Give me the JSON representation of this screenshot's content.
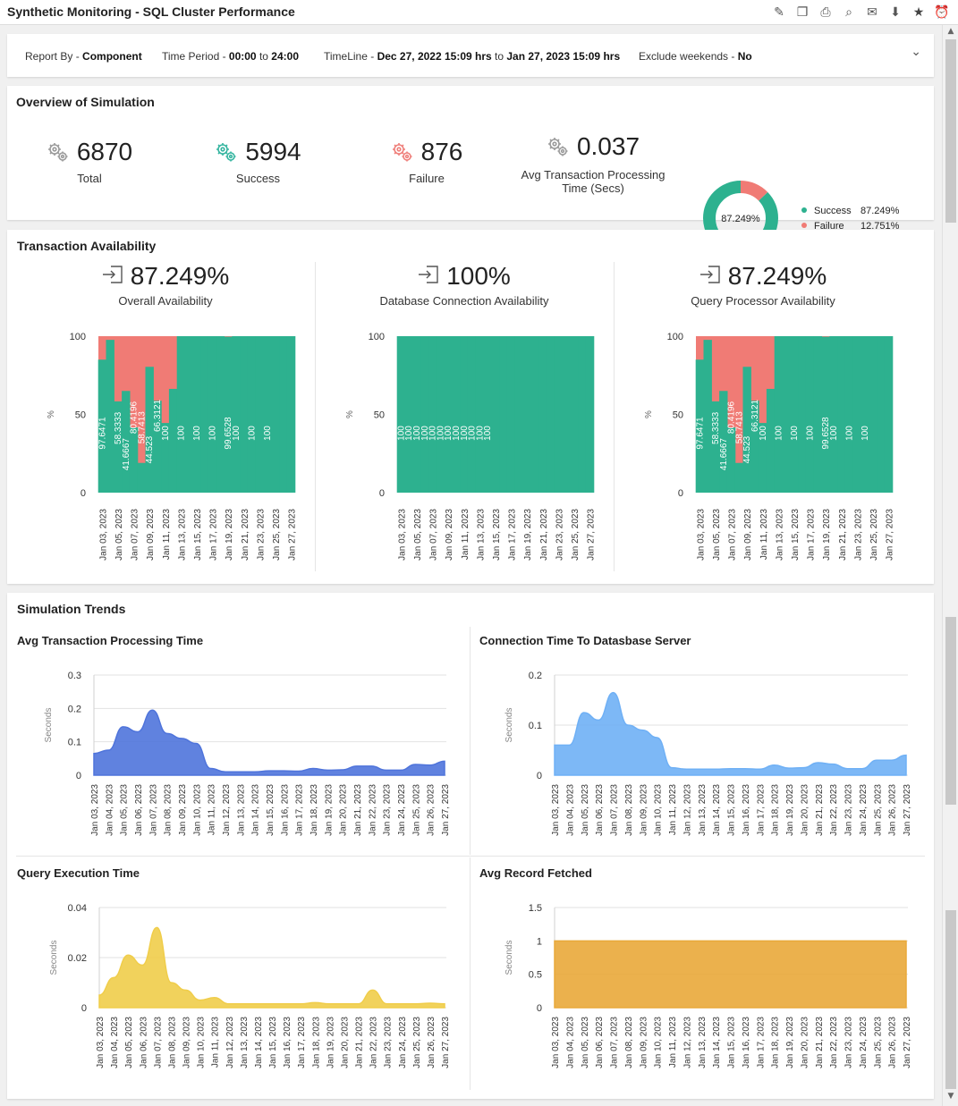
{
  "app": {
    "title": "Synthetic Monitoring - SQL Cluster Performance"
  },
  "toolbar_icons": [
    "edit-report-icon",
    "copy-report-icon",
    "export-icon",
    "print-preview-icon",
    "email-icon",
    "download-icon",
    "favorite-star-icon",
    "alarm-clock-icon"
  ],
  "filters": {
    "report_by_label": "Report By - ",
    "report_by_value": "Component",
    "time_period_label": "Time Period - ",
    "time_period_value": "00:00",
    "time_period_to": " to ",
    "time_period_end": "24:00",
    "timeline_label": "TimeLine - ",
    "timeline_start": "Dec 27, 2022 15:09 hrs",
    "timeline_to": " to ",
    "timeline_end": "Jan 27, 2023 15:09 hrs",
    "exclude_label": "Exclude weekends - ",
    "exclude_value": "No"
  },
  "overview": {
    "title": "Overview of Simulation",
    "total": {
      "value": "6870",
      "label": "Total",
      "icon": "gears-icon",
      "color": "#9a9a9a"
    },
    "success": {
      "value": "5994",
      "label": "Success",
      "icon": "gears-icon",
      "color": "#35b5a0"
    },
    "failure": {
      "value": "876",
      "label": "Failure",
      "icon": "gears-icon",
      "color": "#ef7f7a"
    },
    "avg": {
      "value": "0.037",
      "label_line1": "Avg Transaction Processing",
      "label_line2": "Time (Secs)",
      "icon": "gears-icon",
      "color": "#9a9a9a"
    },
    "donut": {
      "center_label": "87.249%",
      "success_pct": 87.249,
      "failure_pct": 12.751
    },
    "legend": [
      {
        "name": "Success",
        "value": "87.249%",
        "color": "#2db18f"
      },
      {
        "name": "Failure",
        "value": "12.751%",
        "color": "#f07b75"
      }
    ]
  },
  "availability": {
    "title": "Transaction Availability",
    "icon": "sign-in-arrow-icon",
    "panels": [
      {
        "value": "87.249%",
        "label": "Overall Availability"
      },
      {
        "value": "100%",
        "label": "Database Connection Availability"
      },
      {
        "value": "87.249%",
        "label": "Query Processor Availability"
      }
    ]
  },
  "trends": {
    "title": "Simulation Trends",
    "charts": [
      {
        "title": "Avg Transaction Processing Time"
      },
      {
        "title": "Connection Time To Datasbase Server"
      },
      {
        "title": "Query Execution Time"
      },
      {
        "title": "Avg Record Fetched"
      }
    ]
  },
  "chart_data": [
    {
      "type": "area",
      "stacked": true,
      "id": "overall-availability",
      "ylabel": "%",
      "ylim": [
        0,
        100
      ],
      "yticks": [
        "0",
        "50",
        "100"
      ],
      "grid": false,
      "x": [
        "Jan 03, 2023",
        "Jan 04, 2023",
        "Jan 05, 2023",
        "Jan 06, 2023",
        "Jan 07, 2023",
        "Jan 08, 2023",
        "Jan 09, 2023",
        "Jan 10, 2023",
        "Jan 11, 2023",
        "Jan 12, 2023",
        "Jan 13, 2023",
        "Jan 14, 2023",
        "Jan 15, 2023",
        "Jan 16, 2023",
        "Jan 17, 2023",
        "Jan 18, 2023",
        "Jan 19, 2023",
        "Jan 20, 2023",
        "Jan 21, 2023",
        "Jan 22, 2023",
        "Jan 23, 2023",
        "Jan 24, 2023",
        "Jan 25, 2023",
        "Jan 26, 2023",
        "Jan 27, 2023"
      ],
      "xtick_labels": [
        "Jan 03, 2023",
        "Jan 05, 2023",
        "Jan 07, 2023",
        "Jan 09, 2023",
        "Jan 11, 2023",
        "Jan 13, 2023",
        "Jan 15, 2023",
        "Jan 17, 2023",
        "Jan 19, 2023",
        "Jan 21, 2023",
        "Jan 23, 2023",
        "Jan 25, 2023",
        "Jan 27, 2023"
      ],
      "series": [
        {
          "name": "Success",
          "color": "#2db18f",
          "values": [
            85,
            97.6471,
            58.3333,
            65,
            41.6667,
            19,
            80.4196,
            58.7413,
            44.5233,
            66.3121,
            100,
            100,
            100,
            100,
            100,
            100,
            99.6528,
            100,
            100,
            100,
            100,
            100,
            100,
            100,
            100
          ]
        },
        {
          "name": "Failure",
          "color": "#f07b75"
        }
      ],
      "data_labels": [
        "97.6471",
        "58.3333",
        "41.6667",
        "80.4196",
        "58.7413",
        "44.523",
        "66.3121",
        "100",
        "100",
        "100",
        "100",
        "99.6528",
        "100",
        "100",
        "100"
      ]
    },
    {
      "type": "area",
      "stacked": true,
      "id": "database-connection-availability",
      "ylabel": "%",
      "ylim": [
        0,
        100
      ],
      "yticks": [
        "0",
        "50",
        "100"
      ],
      "grid": false,
      "x": [
        "Jan 03, 2023",
        "Jan 04, 2023",
        "Jan 05, 2023",
        "Jan 06, 2023",
        "Jan 07, 2023",
        "Jan 08, 2023",
        "Jan 09, 2023",
        "Jan 10, 2023",
        "Jan 11, 2023",
        "Jan 12, 2023",
        "Jan 13, 2023",
        "Jan 14, 2023",
        "Jan 15, 2023",
        "Jan 16, 2023",
        "Jan 17, 2023",
        "Jan 18, 2023",
        "Jan 19, 2023",
        "Jan 20, 2023",
        "Jan 21, 2023",
        "Jan 22, 2023",
        "Jan 23, 2023",
        "Jan 24, 2023",
        "Jan 25, 2023",
        "Jan 26, 2023",
        "Jan 27, 2023"
      ],
      "xtick_labels": [
        "Jan 03, 2023",
        "Jan 05, 2023",
        "Jan 07, 2023",
        "Jan 09, 2023",
        "Jan 11, 2023",
        "Jan 13, 2023",
        "Jan 15, 2023",
        "Jan 17, 2023",
        "Jan 19, 2023",
        "Jan 21, 2023",
        "Jan 23, 2023",
        "Jan 25, 2023",
        "Jan 27, 2023"
      ],
      "series": [
        {
          "name": "Success",
          "color": "#2db18f",
          "values": [
            100,
            100,
            100,
            100,
            100,
            100,
            100,
            100,
            100,
            100,
            100,
            100,
            100,
            100,
            100,
            100,
            100,
            100,
            100,
            100,
            100,
            100,
            100,
            100,
            100
          ]
        }
      ],
      "data_labels": [
        "100",
        "100",
        "100",
        "100",
        "100",
        "100",
        "100",
        "100",
        "100",
        "100",
        "100",
        "100"
      ]
    },
    {
      "type": "area",
      "stacked": true,
      "id": "query-processor-availability",
      "ylabel": "%",
      "ylim": [
        0,
        100
      ],
      "yticks": [
        "0",
        "50",
        "100"
      ],
      "grid": false,
      "x": [
        "Jan 03, 2023",
        "Jan 04, 2023",
        "Jan 05, 2023",
        "Jan 06, 2023",
        "Jan 07, 2023",
        "Jan 08, 2023",
        "Jan 09, 2023",
        "Jan 10, 2023",
        "Jan 11, 2023",
        "Jan 12, 2023",
        "Jan 13, 2023",
        "Jan 14, 2023",
        "Jan 15, 2023",
        "Jan 16, 2023",
        "Jan 17, 2023",
        "Jan 18, 2023",
        "Jan 19, 2023",
        "Jan 20, 2023",
        "Jan 21, 2023",
        "Jan 22, 2023",
        "Jan 23, 2023",
        "Jan 24, 2023",
        "Jan 25, 2023",
        "Jan 26, 2023",
        "Jan 27, 2023"
      ],
      "xtick_labels": [
        "Jan 03, 2023",
        "Jan 05, 2023",
        "Jan 07, 2023",
        "Jan 09, 2023",
        "Jan 11, 2023",
        "Jan 13, 2023",
        "Jan 15, 2023",
        "Jan 17, 2023",
        "Jan 19, 2023",
        "Jan 21, 2023",
        "Jan 23, 2023",
        "Jan 25, 2023",
        "Jan 27, 2023"
      ],
      "series": [
        {
          "name": "Success",
          "color": "#2db18f",
          "values": [
            85,
            97.6471,
            58.3333,
            65,
            41.6667,
            19,
            80.4196,
            58.7413,
            44.5233,
            66.3121,
            100,
            100,
            100,
            100,
            100,
            100,
            99.6528,
            100,
            100,
            100,
            100,
            100,
            100,
            100,
            100
          ]
        },
        {
          "name": "Failure",
          "color": "#f07b75"
        }
      ],
      "data_labels": [
        "97.6471",
        "58.3333",
        "41.6667",
        "80.4196",
        "58.7413",
        "44.523",
        "66.3121",
        "100",
        "100",
        "100",
        "100",
        "99.6528",
        "100",
        "100",
        "100"
      ]
    },
    {
      "type": "area",
      "id": "avg-transaction-processing-time",
      "ylabel": "Seconds",
      "ylim": [
        0,
        0.3
      ],
      "yticks": [
        "0",
        "0.1",
        "0.2",
        "0.3"
      ],
      "grid": true,
      "color": "#4f74db",
      "x": [
        "Jan 03, 2023",
        "Jan 04, 2023",
        "Jan 05, 2023",
        "Jan 06, 2023",
        "Jan 07, 2023",
        "Jan 08, 2023",
        "Jan 09, 2023",
        "Jan 10, 2023",
        "Jan 11, 2023",
        "Jan 12, 2023",
        "Jan 13, 2023",
        "Jan 14, 2023",
        "Jan 15, 2023",
        "Jan 16, 2023",
        "Jan 17, 2023",
        "Jan 18, 2023",
        "Jan 19, 2023",
        "Jan 20, 2023",
        "Jan 21, 2023",
        "Jan 22, 2023",
        "Jan 23, 2023",
        "Jan 24, 2023",
        "Jan 25, 2023",
        "Jan 26, 2023",
        "Jan 27, 2023"
      ],
      "values": [
        0.065,
        0.075,
        0.145,
        0.13,
        0.195,
        0.125,
        0.11,
        0.095,
        0.02,
        0.01,
        0.01,
        0.01,
        0.013,
        0.013,
        0.012,
        0.02,
        0.015,
        0.016,
        0.027,
        0.027,
        0.015,
        0.015,
        0.032,
        0.03,
        0.042
      ]
    },
    {
      "type": "area",
      "id": "connection-time-to-database-server",
      "ylabel": "Seconds",
      "ylim": [
        0,
        0.2
      ],
      "yticks": [
        "0",
        "0.1",
        "0.2"
      ],
      "grid": true,
      "color": "#6fb0f5",
      "x": [
        "Jan 03, 2023",
        "Jan 04, 2023",
        "Jan 05, 2023",
        "Jan 06, 2023",
        "Jan 07, 2023",
        "Jan 08, 2023",
        "Jan 09, 2023",
        "Jan 10, 2023",
        "Jan 11, 2023",
        "Jan 12, 2023",
        "Jan 13, 2023",
        "Jan 14, 2023",
        "Jan 15, 2023",
        "Jan 16, 2023",
        "Jan 17, 2023",
        "Jan 18, 2023",
        "Jan 19, 2023",
        "Jan 20, 2023",
        "Jan 21, 2023",
        "Jan 22, 2023",
        "Jan 23, 2023",
        "Jan 24, 2023",
        "Jan 25, 2023",
        "Jan 26, 2023",
        "Jan 27, 2023"
      ],
      "values": [
        0.06,
        0.06,
        0.125,
        0.11,
        0.165,
        0.1,
        0.09,
        0.075,
        0.015,
        0.012,
        0.012,
        0.012,
        0.013,
        0.013,
        0.012,
        0.02,
        0.014,
        0.015,
        0.025,
        0.022,
        0.013,
        0.013,
        0.03,
        0.03,
        0.04
      ]
    },
    {
      "type": "area",
      "id": "query-execution-time",
      "ylabel": "Seconds",
      "ylim": [
        0,
        0.04
      ],
      "yticks": [
        "0",
        "0.02",
        "0.04"
      ],
      "grid": true,
      "color": "#f0cd4a",
      "x": [
        "Jan 03, 2023",
        "Jan 04, 2023",
        "Jan 05, 2023",
        "Jan 06, 2023",
        "Jan 07, 2023",
        "Jan 08, 2023",
        "Jan 09, 2023",
        "Jan 10, 2023",
        "Jan 11, 2023",
        "Jan 12, 2023",
        "Jan 13, 2023",
        "Jan 14, 2023",
        "Jan 15, 2023",
        "Jan 16, 2023",
        "Jan 17, 2023",
        "Jan 18, 2023",
        "Jan 19, 2023",
        "Jan 20, 2023",
        "Jan 21, 2023",
        "Jan 22, 2023",
        "Jan 23, 2023",
        "Jan 24, 2023",
        "Jan 25, 2023",
        "Jan 26, 2023",
        "Jan 27, 2023"
      ],
      "values": [
        0.005,
        0.012,
        0.021,
        0.017,
        0.032,
        0.01,
        0.007,
        0.003,
        0.004,
        0.0015,
        0.0015,
        0.0015,
        0.0015,
        0.0015,
        0.0015,
        0.002,
        0.0015,
        0.0015,
        0.0015,
        0.007,
        0.0015,
        0.0015,
        0.0015,
        0.0018,
        0.0015
      ]
    },
    {
      "type": "area",
      "id": "avg-record-fetched",
      "ylabel": "Seconds",
      "ylim": [
        0,
        1.5
      ],
      "yticks": [
        "0",
        "0.5",
        "1",
        "1.5"
      ],
      "grid": true,
      "color": "#e9a93a",
      "x": [
        "Jan 03, 2023",
        "Jan 04, 2023",
        "Jan 05, 2023",
        "Jan 06, 2023",
        "Jan 07, 2023",
        "Jan 08, 2023",
        "Jan 09, 2023",
        "Jan 10, 2023",
        "Jan 11, 2023",
        "Jan 12, 2023",
        "Jan 13, 2023",
        "Jan 14, 2023",
        "Jan 15, 2023",
        "Jan 16, 2023",
        "Jan 17, 2023",
        "Jan 18, 2023",
        "Jan 19, 2023",
        "Jan 20, 2023",
        "Jan 21, 2023",
        "Jan 22, 2023",
        "Jan 23, 2023",
        "Jan 24, 2023",
        "Jan 25, 2023",
        "Jan 26, 2023",
        "Jan 27, 2023"
      ],
      "values": [
        1,
        1,
        1,
        1,
        1,
        1,
        1,
        1,
        1,
        1,
        1,
        1,
        1,
        1,
        1,
        1,
        1,
        1,
        1,
        1,
        1,
        1,
        1,
        1,
        1
      ]
    }
  ]
}
